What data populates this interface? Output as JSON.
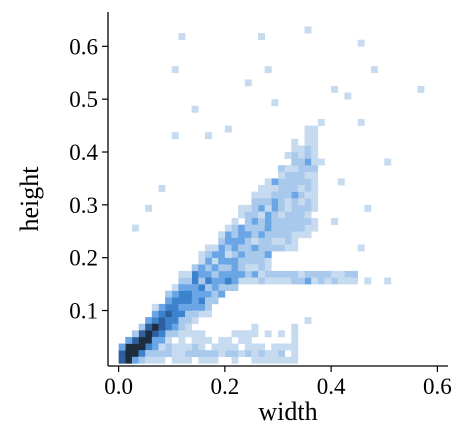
{
  "chart_data": {
    "type": "heatmap",
    "subtype": "2d-histogram",
    "title": "",
    "xlabel": "width",
    "ylabel": "height",
    "xlim": [
      -0.02,
      0.62
    ],
    "ylim": [
      -0.005,
      0.665
    ],
    "xticks": [
      "0.0",
      "0.2",
      "0.4",
      "0.6"
    ],
    "xtick_values": [
      0.0,
      0.2,
      0.4,
      0.6
    ],
    "yticks": [
      "0.1",
      "0.2",
      "0.3",
      "0.4",
      "0.5",
      "0.6"
    ],
    "ytick_values": [
      0.1,
      0.2,
      0.3,
      0.4,
      0.5,
      0.6
    ],
    "bin_size": 0.0125,
    "grid": false,
    "colors": {
      "lowest": "#c6daf0",
      "low": "#a9c9ec",
      "mid": "#6aa6e6",
      "high": "#3c82cc",
      "peak": "#1f2c3e"
    },
    "density_ridge": {
      "description_points": [
        [
          0.02,
          0.02
        ],
        [
          0.06,
          0.06
        ],
        [
          0.12,
          0.14
        ],
        [
          0.2,
          0.2
        ],
        [
          0.3,
          0.27
        ]
      ]
    },
    "dense_bins": [
      {
        "x": 0.025,
        "y": 0.025,
        "count": 60
      },
      {
        "x": 0.0375,
        "y": 0.0375,
        "count": 48
      },
      {
        "x": 0.05,
        "y": 0.05,
        "count": 32
      },
      {
        "x": 0.0625,
        "y": 0.0625,
        "count": 20
      },
      {
        "x": 0.075,
        "y": 0.075,
        "count": 14
      },
      {
        "x": 0.0875,
        "y": 0.0875,
        "count": 10
      },
      {
        "x": 0.1,
        "y": 0.1,
        "count": 7
      },
      {
        "x": 0.05,
        "y": 0.0375,
        "count": 12
      },
      {
        "x": 0.0375,
        "y": 0.05,
        "count": 12
      },
      {
        "x": 0.0625,
        "y": 0.05,
        "count": 9
      },
      {
        "x": 0.0125,
        "y": 0.025,
        "count": 15
      },
      {
        "x": 0.025,
        "y": 0.0125,
        "count": 12
      }
    ],
    "sparse_points": [
      [
        0.12,
        0.62
      ],
      [
        0.27,
        0.62
      ],
      [
        0.36,
        0.63
      ],
      [
        0.45,
        0.61
      ],
      [
        0.575,
        0.515
      ],
      [
        0.48,
        0.55
      ],
      [
        0.28,
        0.55
      ],
      [
        0.1,
        0.56
      ],
      [
        0.14,
        0.48
      ],
      [
        0.17,
        0.43
      ],
      [
        0.24,
        0.53
      ],
      [
        0.3,
        0.49
      ],
      [
        0.4,
        0.52
      ],
      [
        0.43,
        0.5
      ],
      [
        0.46,
        0.45
      ],
      [
        0.5,
        0.38
      ],
      [
        0.42,
        0.35
      ],
      [
        0.38,
        0.45
      ],
      [
        0.33,
        0.42
      ],
      [
        0.47,
        0.3
      ],
      [
        0.5,
        0.16
      ],
      [
        0.47,
        0.16
      ],
      [
        0.44,
        0.17
      ],
      [
        0.36,
        0.08
      ],
      [
        0.26,
        0.07
      ],
      [
        0.24,
        0.06
      ],
      [
        0.05,
        0.3
      ],
      [
        0.08,
        0.33
      ],
      [
        0.03,
        0.26
      ],
      [
        0.41,
        0.27
      ],
      [
        0.35,
        0.24
      ],
      [
        0.45,
        0.22
      ],
      [
        0.1,
        0.43
      ],
      [
        0.2,
        0.44
      ],
      [
        0.38,
        0.38
      ],
      [
        0.31,
        0.33
      ]
    ]
  }
}
